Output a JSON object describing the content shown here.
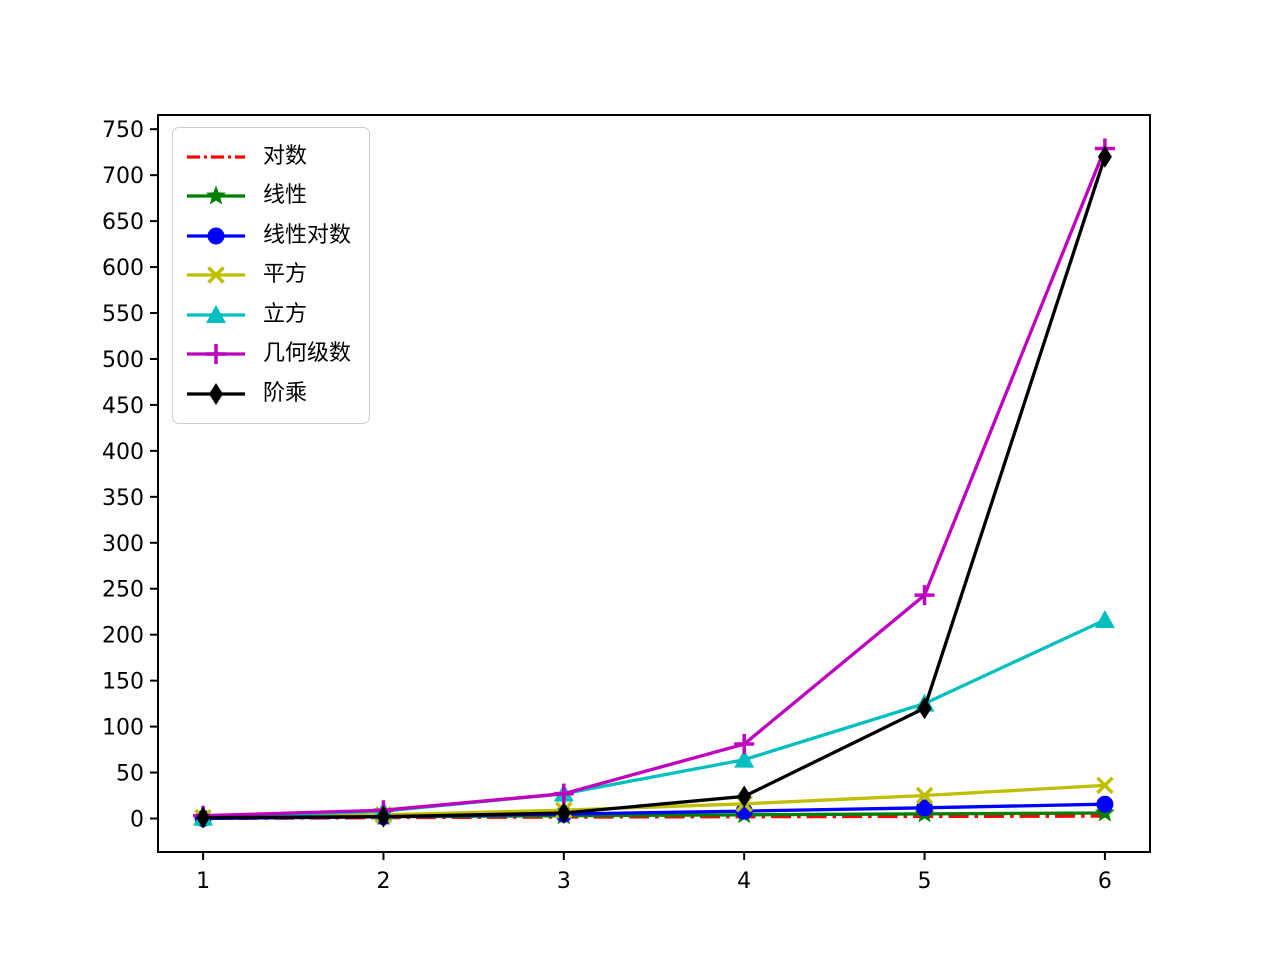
{
  "chart_data": {
    "type": "line",
    "title": "",
    "xlabel": "",
    "ylabel": "",
    "grid": false,
    "legend_position": "upper-left",
    "x": [
      1,
      2,
      3,
      4,
      5,
      6
    ],
    "series": [
      {
        "name": "对数",
        "values": [
          0,
          1,
          1.58,
          2,
          2.32,
          2.58
        ],
        "color": "#ff0000",
        "linestyle": "dashdot",
        "marker": "none"
      },
      {
        "name": "线性",
        "values": [
          1,
          2,
          3,
          4,
          5,
          6
        ],
        "color": "#008000",
        "linestyle": "solid",
        "marker": "star"
      },
      {
        "name": "线性对数",
        "values": [
          0,
          2,
          4.75,
          8,
          11.61,
          15.51
        ],
        "color": "#0000ff",
        "linestyle": "solid",
        "marker": "circle"
      },
      {
        "name": "平方",
        "values": [
          1,
          4,
          9,
          16,
          25,
          36
        ],
        "color": "#bfbf00",
        "linestyle": "solid",
        "marker": "x"
      },
      {
        "name": "立方",
        "values": [
          1,
          8,
          27,
          64,
          125,
          216
        ],
        "color": "#00bfbf",
        "linestyle": "solid",
        "marker": "triangle-up"
      },
      {
        "name": "几何级数",
        "values": [
          3,
          9,
          27,
          81,
          243,
          729
        ],
        "color": "#bf00bf",
        "linestyle": "solid",
        "marker": "plus"
      },
      {
        "name": "阶乘",
        "values": [
          1,
          2,
          6,
          24,
          120,
          720
        ],
        "color": "#000000",
        "linestyle": "solid",
        "marker": "diamond"
      }
    ],
    "x_ticks": [
      1,
      2,
      3,
      4,
      5,
      6
    ],
    "y_ticks": [
      0,
      50,
      100,
      150,
      200,
      250,
      300,
      350,
      400,
      450,
      500,
      550,
      600,
      650,
      700,
      750
    ],
    "xlim": [
      0.75,
      6.25
    ],
    "ylim": [
      -36.45,
      765.45
    ],
    "axis_color": "#000000",
    "tick_font_size": 22
  }
}
